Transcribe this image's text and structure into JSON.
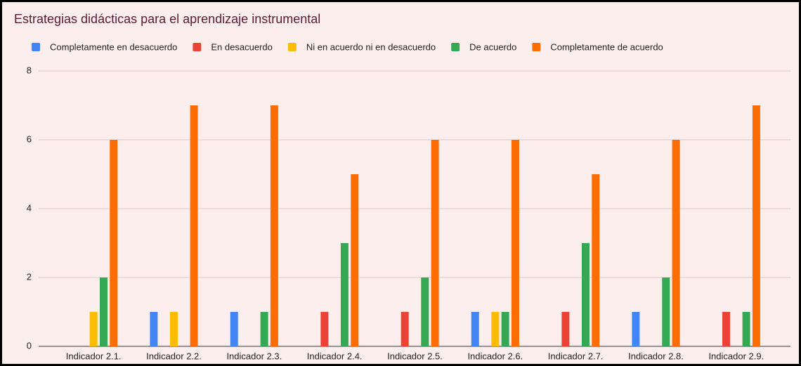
{
  "chart_data": {
    "type": "bar",
    "title": "Estrategias didácticas para el aprendizaje instrumental",
    "categories": [
      "Indicador 2.1.",
      "Indicador 2.2.",
      "Indicador 2.3.",
      "Indicador 2.4.",
      "Indicador 2.5.",
      "Indicador 2.6.",
      "Indicador 2.7.",
      "Indicador 2.8.",
      "Indicador 2.9."
    ],
    "series": [
      {
        "name": "Completamente en desacuerdo",
        "color": "#4285f4",
        "values": [
          0,
          1,
          1,
          0,
          0,
          1,
          0,
          1,
          0
        ]
      },
      {
        "name": "En desacuerdo",
        "color": "#ea4335",
        "values": [
          0,
          0,
          0,
          1,
          1,
          0,
          1,
          0,
          1
        ]
      },
      {
        "name": "Ni en acuerdo ni en desacuerdo",
        "color": "#fbbc04",
        "values": [
          1,
          1,
          0,
          0,
          0,
          1,
          0,
          0,
          0
        ]
      },
      {
        "name": "De acuerdo",
        "color": "#34a853",
        "values": [
          2,
          0,
          1,
          3,
          2,
          1,
          3,
          2,
          1
        ]
      },
      {
        "name": "Completamente de acuerdo",
        "color": "#ff6d01",
        "values": [
          6,
          7,
          7,
          5,
          6,
          6,
          5,
          6,
          7
        ]
      }
    ],
    "ylim": [
      0,
      8
    ],
    "yticks": [
      0,
      2,
      4,
      6,
      8
    ],
    "grid": true,
    "legend": "top"
  }
}
